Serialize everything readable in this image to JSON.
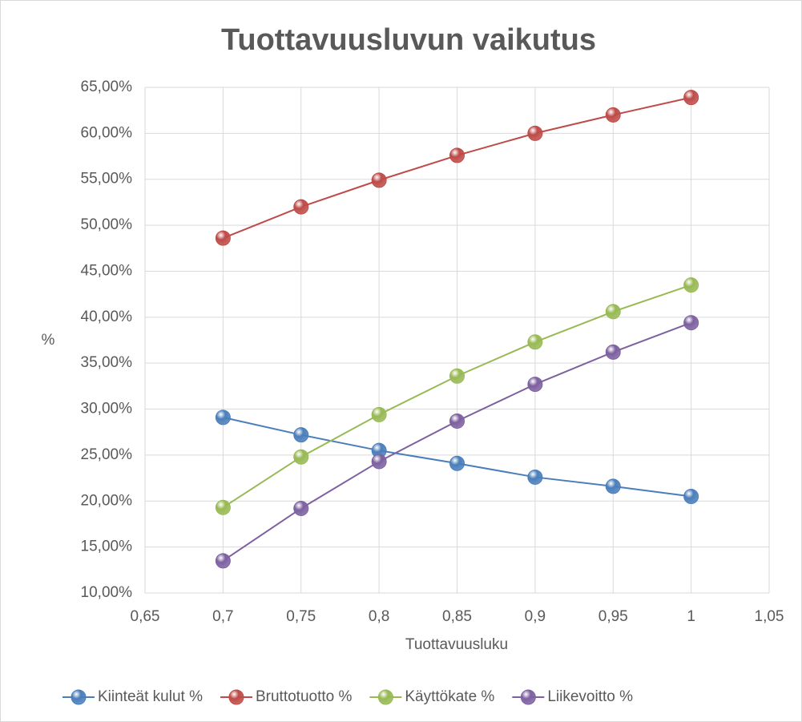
{
  "chart_data": {
    "type": "line",
    "title": "Tuottavuusluvun vaikutus",
    "x_label": "Tuottavuusluku",
    "y_label": "%",
    "x": [
      0.7,
      0.75,
      0.8,
      0.85,
      0.9,
      0.95,
      1
    ],
    "series": [
      {
        "name": "Kiinteät kulut %",
        "color": "#4a7ebb",
        "values": [
          29.1,
          27.2,
          25.5,
          24.1,
          22.6,
          21.6,
          20.5
        ]
      },
      {
        "name": "Bruttotuotto %",
        "color": "#be4b48",
        "values": [
          48.6,
          52.0,
          54.9,
          57.6,
          60.0,
          62.0,
          63.9
        ]
      },
      {
        "name": "Käyttökate %",
        "color": "#98b954",
        "values": [
          19.3,
          24.8,
          29.4,
          33.6,
          37.3,
          40.6,
          43.5
        ]
      },
      {
        "name": "Liikevoitto %",
        "color": "#7d60a0",
        "values": [
          13.5,
          19.2,
          24.3,
          28.7,
          32.7,
          36.2,
          39.4
        ]
      }
    ],
    "xlim": [
      0.65,
      1.05
    ],
    "xticks": [
      {
        "value": 0.65,
        "label": "0,65"
      },
      {
        "value": 0.7,
        "label": "0,7"
      },
      {
        "value": 0.75,
        "label": "0,75"
      },
      {
        "value": 0.8,
        "label": "0,8"
      },
      {
        "value": 0.85,
        "label": "0,85"
      },
      {
        "value": 0.9,
        "label": "0,9"
      },
      {
        "value": 0.95,
        "label": "0,95"
      },
      1,
      {
        "value": 1.05,
        "label": "1,05"
      }
    ],
    "ylim": [
      10,
      65
    ],
    "yticks": [
      {
        "value": 10,
        "label": "10,00%"
      },
      {
        "value": 15,
        "label": "15,00%"
      },
      {
        "value": 20,
        "label": "20,00%"
      },
      {
        "value": 25,
        "label": "25,00%"
      },
      {
        "value": 30,
        "label": "30,00%"
      },
      {
        "value": 35,
        "label": "35,00%"
      },
      {
        "value": 40,
        "label": "40,00%"
      },
      {
        "value": 45,
        "label": "45,00%"
      },
      {
        "value": 50,
        "label": "50,00%"
      },
      {
        "value": 55,
        "label": "55,00%"
      },
      {
        "value": 60,
        "label": "60,00%"
      },
      {
        "value": 65,
        "label": "65,00%"
      }
    ],
    "grid": true,
    "legend": "bottom"
  }
}
